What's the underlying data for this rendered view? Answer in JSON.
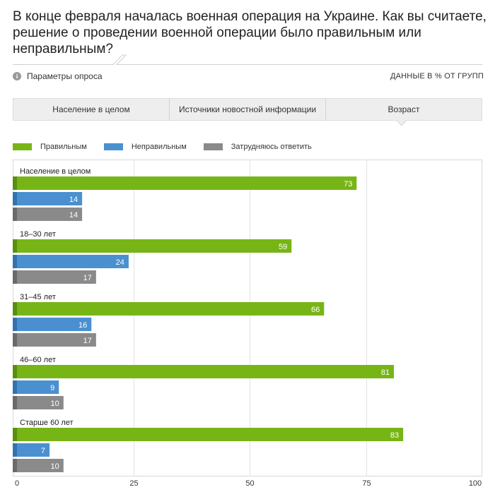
{
  "title": "В конце февраля началась военная операция на Украине. Как вы считаете, решение о проведении военной операции было правильным или неправильным?",
  "params_label": "Параметры опроса",
  "units_label": "ДАННЫЕ В % ОТ ГРУПП",
  "tabs": [
    "Население в целом",
    "Источники новостной информации",
    "Возраст"
  ],
  "active_tab": "Возраст",
  "colors": {
    "green": "#77b516",
    "blue": "#4a90d0",
    "gray": "#8a8a8a",
    "green_dark": "#5a8e0e",
    "blue_dark": "#3373ad",
    "gray_dark": "#6a6a6a"
  },
  "chart_data": {
    "type": "bar",
    "orientation": "horizontal",
    "categories": [
      "Население в целом",
      "18–30 лет",
      "31–45 лет",
      "46–60 лет",
      "Старше 60 лет"
    ],
    "series": [
      {
        "name": "Правильным",
        "color": "#77b516",
        "values": [
          73,
          59,
          66,
          81,
          83
        ]
      },
      {
        "name": "Неправильным",
        "color": "#4a90d0",
        "values": [
          14,
          24,
          16,
          9,
          7
        ]
      },
      {
        "name": "Затрудняюсь ответить",
        "color": "#8a8a8a",
        "values": [
          14,
          17,
          17,
          10,
          10
        ]
      }
    ],
    "xlim": [
      0,
      100
    ],
    "xticks": [
      0,
      25,
      50,
      75,
      100
    ],
    "grid": true,
    "legend": "top-left"
  }
}
